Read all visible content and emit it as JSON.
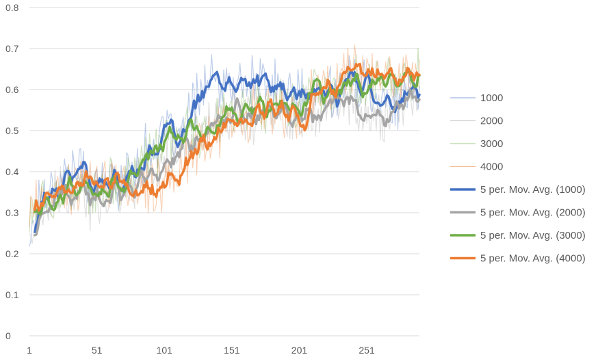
{
  "chart_data": {
    "type": "line",
    "title": "",
    "xlabel": "",
    "ylabel": "",
    "x_range": [
      1,
      290
    ],
    "ylim": [
      0,
      0.8
    ],
    "y_ticks": [
      "0",
      "0.1",
      "0.2",
      "0.3",
      "0.4",
      "0.5",
      "0.6",
      "0.7",
      "0.8"
    ],
    "x_ticks": [
      {
        "label": "1",
        "value": 1
      },
      {
        "label": "51",
        "value": 51
      },
      {
        "label": "101",
        "value": 101
      },
      {
        "label": "151",
        "value": 151
      },
      {
        "label": "201",
        "value": 201
      },
      {
        "label": "251",
        "value": 251
      }
    ],
    "grid": "horizontal",
    "legend_position": "right",
    "moving_average_period": 5,
    "series": [
      {
        "name": "1000",
        "kind": "raw",
        "color": "#4472C4",
        "anchors": [
          [
            1,
            0.23
          ],
          [
            8,
            0.34
          ],
          [
            20,
            0.37
          ],
          [
            30,
            0.4
          ],
          [
            40,
            0.4
          ],
          [
            52,
            0.36
          ],
          [
            62,
            0.38
          ],
          [
            72,
            0.38
          ],
          [
            82,
            0.43
          ],
          [
            92,
            0.46
          ],
          [
            102,
            0.49
          ],
          [
            112,
            0.47
          ],
          [
            122,
            0.55
          ],
          [
            128,
            0.61
          ],
          [
            135,
            0.62
          ],
          [
            145,
            0.6
          ],
          [
            155,
            0.61
          ],
          [
            165,
            0.62
          ],
          [
            175,
            0.61
          ],
          [
            185,
            0.6
          ],
          [
            195,
            0.59
          ],
          [
            205,
            0.58
          ],
          [
            215,
            0.59
          ],
          [
            225,
            0.6
          ],
          [
            235,
            0.62
          ],
          [
            245,
            0.62
          ],
          [
            255,
            0.6
          ],
          [
            265,
            0.57
          ],
          [
            275,
            0.56
          ],
          [
            283,
            0.58
          ],
          [
            290,
            0.6
          ]
        ]
      },
      {
        "name": "2000",
        "kind": "raw",
        "color": "#A5A5A5",
        "anchors": [
          [
            1,
            0.25
          ],
          [
            10,
            0.29
          ],
          [
            22,
            0.34
          ],
          [
            34,
            0.34
          ],
          [
            46,
            0.33
          ],
          [
            58,
            0.35
          ],
          [
            70,
            0.37
          ],
          [
            82,
            0.38
          ],
          [
            94,
            0.4
          ],
          [
            106,
            0.43
          ],
          [
            118,
            0.46
          ],
          [
            128,
            0.5
          ],
          [
            138,
            0.52
          ],
          [
            150,
            0.54
          ],
          [
            162,
            0.53
          ],
          [
            172,
            0.54
          ],
          [
            182,
            0.55
          ],
          [
            192,
            0.54
          ],
          [
            202,
            0.56
          ],
          [
            212,
            0.56
          ],
          [
            222,
            0.57
          ],
          [
            232,
            0.58
          ],
          [
            242,
            0.56
          ],
          [
            252,
            0.54
          ],
          [
            262,
            0.53
          ],
          [
            272,
            0.56
          ],
          [
            282,
            0.57
          ],
          [
            290,
            0.56
          ]
        ]
      },
      {
        "name": "3000",
        "kind": "raw",
        "color": "#70AD47",
        "anchors": [
          [
            1,
            0.29
          ],
          [
            10,
            0.32
          ],
          [
            22,
            0.34
          ],
          [
            34,
            0.36
          ],
          [
            46,
            0.34
          ],
          [
            58,
            0.35
          ],
          [
            70,
            0.38
          ],
          [
            82,
            0.42
          ],
          [
            94,
            0.45
          ],
          [
            106,
            0.47
          ],
          [
            118,
            0.49
          ],
          [
            128,
            0.51
          ],
          [
            138,
            0.53
          ],
          [
            150,
            0.55
          ],
          [
            162,
            0.54
          ],
          [
            172,
            0.55
          ],
          [
            182,
            0.56
          ],
          [
            192,
            0.56
          ],
          [
            202,
            0.58
          ],
          [
            212,
            0.6
          ],
          [
            222,
            0.61
          ],
          [
            232,
            0.62
          ],
          [
            242,
            0.61
          ],
          [
            252,
            0.62
          ],
          [
            262,
            0.63
          ],
          [
            272,
            0.63
          ],
          [
            282,
            0.64
          ],
          [
            290,
            0.66
          ]
        ]
      },
      {
        "name": "4000",
        "kind": "raw",
        "color": "#ED7D31",
        "anchors": [
          [
            1,
            0.29
          ],
          [
            10,
            0.32
          ],
          [
            22,
            0.35
          ],
          [
            34,
            0.37
          ],
          [
            46,
            0.36
          ],
          [
            56,
            0.38
          ],
          [
            66,
            0.37
          ],
          [
            76,
            0.36
          ],
          [
            86,
            0.35
          ],
          [
            96,
            0.37
          ],
          [
            106,
            0.38
          ],
          [
            116,
            0.42
          ],
          [
            126,
            0.46
          ],
          [
            136,
            0.49
          ],
          [
            146,
            0.51
          ],
          [
            156,
            0.52
          ],
          [
            166,
            0.54
          ],
          [
            176,
            0.55
          ],
          [
            186,
            0.55
          ],
          [
            196,
            0.53
          ],
          [
            206,
            0.56
          ],
          [
            216,
            0.59
          ],
          [
            226,
            0.61
          ],
          [
            236,
            0.64
          ],
          [
            246,
            0.65
          ],
          [
            256,
            0.64
          ],
          [
            266,
            0.63
          ],
          [
            276,
            0.63
          ],
          [
            284,
            0.62
          ],
          [
            290,
            0.63
          ]
        ]
      },
      {
        "name": "5 per. Mov. Avg. (1000)",
        "kind": "avg",
        "of": 0,
        "color": "#4472C4"
      },
      {
        "name": "5 per. Mov. Avg. (2000)",
        "kind": "avg",
        "of": 1,
        "color": "#A5A5A5"
      },
      {
        "name": "5 per. Mov. Avg. (3000)",
        "kind": "avg",
        "of": 2,
        "color": "#70AD47"
      },
      {
        "name": "5 per. Mov. Avg. (4000)",
        "kind": "avg",
        "of": 3,
        "color": "#ED7D31"
      }
    ]
  }
}
